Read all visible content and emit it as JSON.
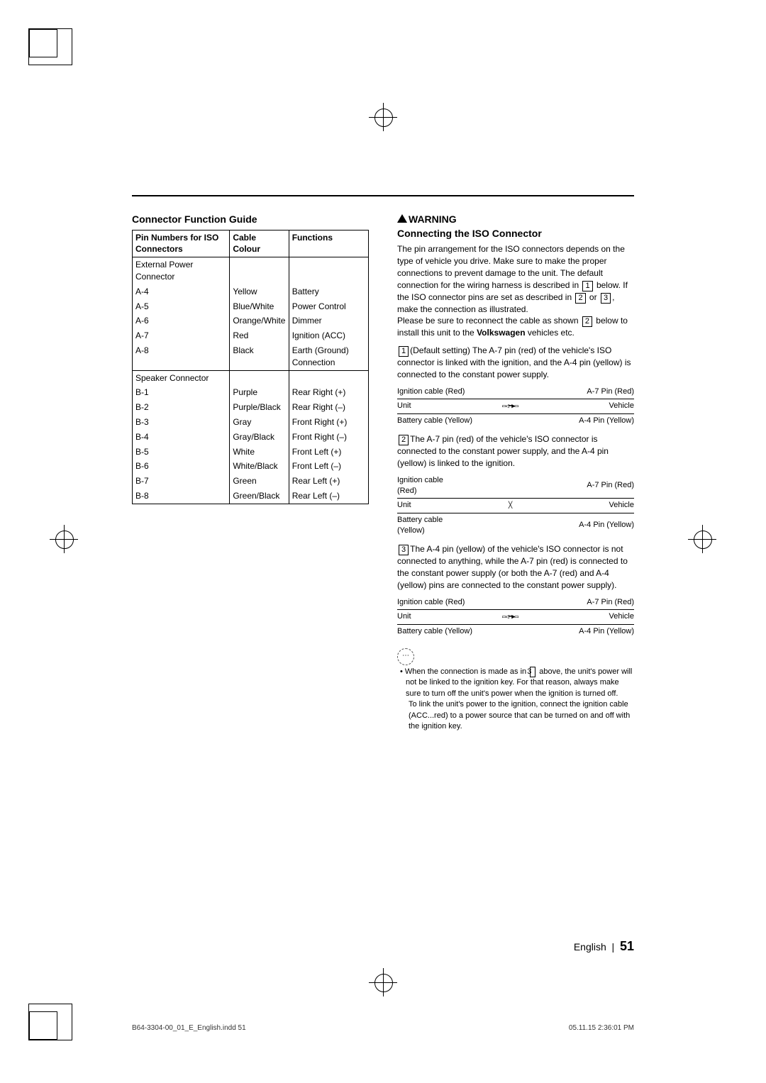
{
  "left": {
    "heading": "Connector Function Guide",
    "th1": "Pin Numbers for ISO Connectors",
    "th2": "Cable Colour",
    "th3": "Functions",
    "group1": "External Power Connector",
    "rows1": [
      {
        "pin": "A-4",
        "col": "Yellow",
        "fn": "Battery"
      },
      {
        "pin": "A-5",
        "col": "Blue/White",
        "fn": "Power Control"
      },
      {
        "pin": "A-6",
        "col": "Orange/White",
        "fn": "Dimmer"
      },
      {
        "pin": "A-7",
        "col": "Red",
        "fn": "Ignition (ACC)"
      },
      {
        "pin": "A-8",
        "col": "Black",
        "fn": "Earth (Ground) Connection"
      }
    ],
    "group2": "Speaker Connector",
    "rows2": [
      {
        "pin": "B-1",
        "col": "Purple",
        "fn": "Rear Right (+)"
      },
      {
        "pin": "B-2",
        "col": "Purple/Black",
        "fn": "Rear Right (–)"
      },
      {
        "pin": "B-3",
        "col": "Gray",
        "fn": "Front Right (+)"
      },
      {
        "pin": "B-4",
        "col": "Gray/Black",
        "fn": "Front Right (–)"
      },
      {
        "pin": "B-5",
        "col": "White",
        "fn": "Front Left (+)"
      },
      {
        "pin": "B-6",
        "col": "White/Black",
        "fn": "Front Left (–)"
      },
      {
        "pin": "B-7",
        "col": "Green",
        "fn": "Rear Left (+)"
      },
      {
        "pin": "B-8",
        "col": "Green/Black",
        "fn": "Rear Left (–)"
      }
    ]
  },
  "right": {
    "warning": "WARNING",
    "heading2": "Connecting the ISO Connector",
    "intro": "The pin arrangement for the ISO connectors depends on the type of vehicle you drive. Make sure to make the proper connections to prevent damage to the unit. The default connection for the wiring harness is described in ",
    "intro2": " below. If the ISO connector pins are set as described in ",
    "intro3": " or ",
    "intro4": ", make the connection as illustrated.",
    "intro5": "Please be sure to reconnect the cable as shown ",
    "intro6": " below to install this unit to the ",
    "vw": "Volkswagen",
    "intro7": " vehicles etc.",
    "n1": "1",
    "n2": "2",
    "n3": "3",
    "item1": "(Default setting) The A-7 pin (red) of the vehicle's ISO connector is linked with the ignition, and the A-4 pin (yellow) is connected to the constant power supply.",
    "item2": "The A-7 pin (red) of the vehicle's ISO connector is connected to the constant power supply, and the A-4 pin (yellow) is linked to the ignition.",
    "item3": "The A-4 pin (yellow) of the vehicle's ISO connector is not connected to anything, while the A-7 pin (red) is connected to the constant power supply (or both the A-7 (red) and A-4 (yellow) pins are connected to the constant power supply).",
    "diag": {
      "igRed": "Ignition cable (Red)",
      "igRedStack": "Ignition cable",
      "igRedStack2": "(Red)",
      "a7": "A-7 Pin (Red)",
      "unit": "Unit",
      "vehicle": "Vehicle",
      "batYel": "Battery cable (Yellow)",
      "batYelStack": "Battery cable",
      "batYelStack2": "(Yellow)",
      "a4": "A-4 Pin (Yellow)",
      "arrow": "▭◁━▶▭"
    },
    "note1": "When the connection is made as in ",
    "note1b": " above, the unit's power will not be linked to the ignition key. For that reason, always make sure to turn off the unit's power when the ignition is turned off.",
    "note2": "To link the unit's power to the ignition, connect the ignition cable (ACC...red) to a power source that can be turned on and off with the ignition key."
  },
  "footer": {
    "lang": "English",
    "sep": "|",
    "page": "51"
  },
  "slug": {
    "file": "B64-3304-00_01_E_English.indd   51",
    "ts": "05.11.15   2:36:01 PM"
  }
}
